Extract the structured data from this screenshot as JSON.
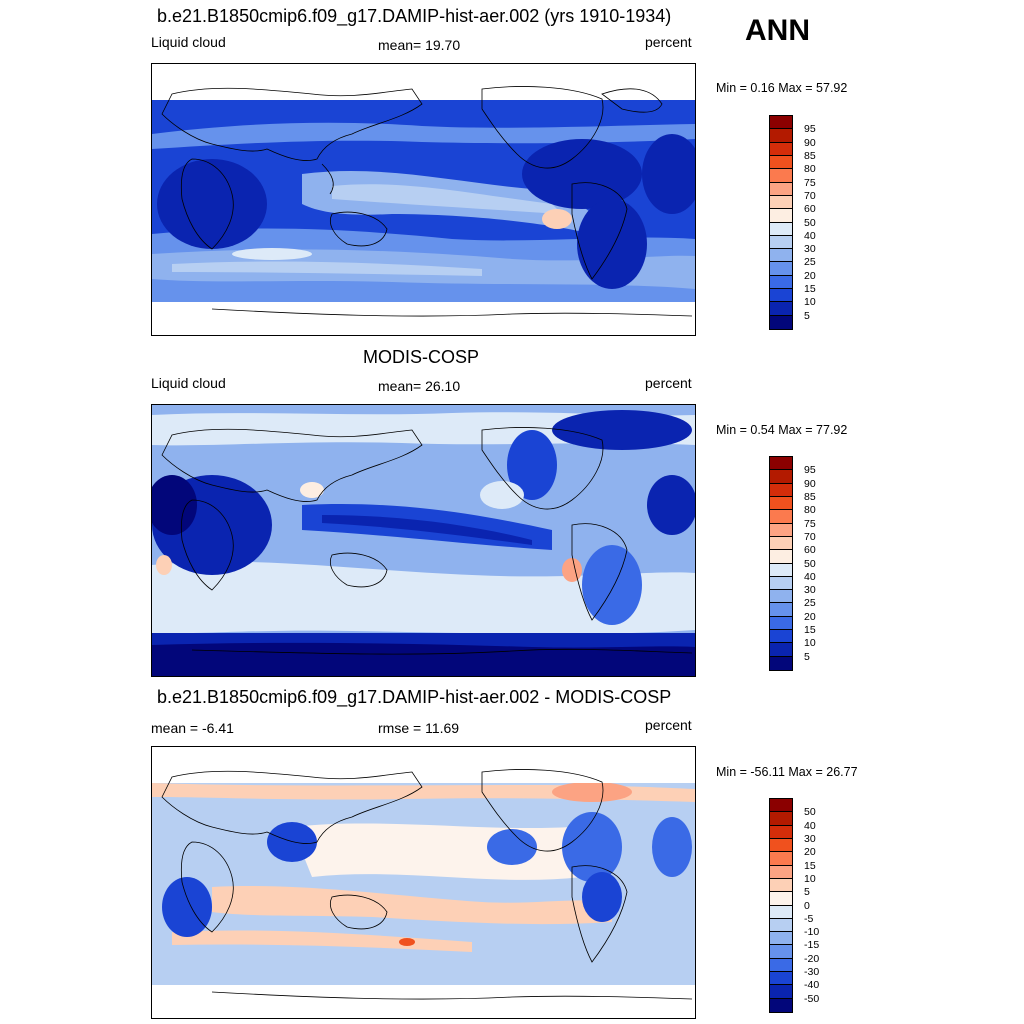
{
  "season": "ANN",
  "panels": [
    {
      "title": "b.e21.B1850cmip6.f09_g17.DAMIP-hist-aer.002 (yrs 1910-1934)",
      "left_label": "Liquid cloud",
      "center_label": "mean=  19.70",
      "right_label": "percent",
      "minmax": "Min =   0.16 Max =  57.92",
      "colorbar": {
        "labels": [
          "95",
          "90",
          "85",
          "80",
          "75",
          "70",
          "60",
          "50",
          "40",
          "30",
          "25",
          "20",
          "15",
          "10",
          "5"
        ],
        "colors": [
          "#8b0000",
          "#b31a00",
          "#d42d0a",
          "#f0511e",
          "#fb7a4e",
          "#fca383",
          "#fdd0b6",
          "#fdeee2",
          "#ddeaf8",
          "#b7cff2",
          "#8fb2ee",
          "#6692ec",
          "#3a6ae6",
          "#1a44d4",
          "#0a24b0",
          "#02067a"
        ]
      }
    },
    {
      "title": "MODIS-COSP",
      "left_label": "Liquid cloud",
      "center_label": "mean=  26.10",
      "right_label": "percent",
      "minmax": "Min =   0.54 Max =  77.92",
      "colorbar": {
        "labels": [
          "95",
          "90",
          "85",
          "80",
          "75",
          "70",
          "60",
          "50",
          "40",
          "30",
          "25",
          "20",
          "15",
          "10",
          "5"
        ],
        "colors": [
          "#8b0000",
          "#b31a00",
          "#d42d0a",
          "#f0511e",
          "#fb7a4e",
          "#fca383",
          "#fdd0b6",
          "#fdeee2",
          "#ddeaf8",
          "#b7cff2",
          "#8fb2ee",
          "#6692ec",
          "#3a6ae6",
          "#1a44d4",
          "#0a24b0",
          "#02067a"
        ]
      }
    },
    {
      "title": "b.e21.B1850cmip6.f09_g17.DAMIP-hist-aer.002 - MODIS-COSP",
      "left_label": "mean =  -6.41",
      "center_label": "rmse =  11.69",
      "right_label": "percent",
      "minmax": "Min = -56.11 Max =  26.77",
      "colorbar": {
        "labels": [
          "50",
          "40",
          "30",
          "20",
          "15",
          "10",
          "5",
          "0",
          "-5",
          "-10",
          "-15",
          "-20",
          "-30",
          "-40",
          "-50"
        ],
        "colors": [
          "#8b0000",
          "#b31a00",
          "#d42d0a",
          "#f0511e",
          "#fb7a4e",
          "#fca383",
          "#fdd0b6",
          "#fdf3ec",
          "#ddeaf8",
          "#b7cff2",
          "#8fb2ee",
          "#6692ec",
          "#3a6ae6",
          "#1a44d4",
          "#0a24b0",
          "#02067a"
        ]
      }
    }
  ]
}
